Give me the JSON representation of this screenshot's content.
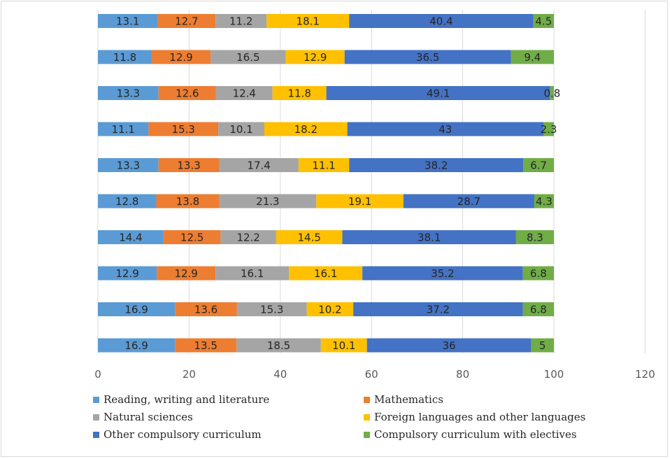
{
  "chart_data": {
    "type": "bar",
    "orientation": "horizontal",
    "stacked": true,
    "title": "",
    "xlabel": "",
    "ylabel": "",
    "xlim": [
      0,
      120
    ],
    "x_ticks": [
      0,
      20,
      40,
      60,
      80,
      100,
      120
    ],
    "grid": "vertical",
    "legend_position": "bottom",
    "categories": [
      "",
      "",
      "",
      "",
      "",
      "",
      "",
      "",
      "",
      ""
    ],
    "series": [
      {
        "name": "Reading, writing and literature",
        "color": "#5b9bd5",
        "values": [
          13.1,
          11.8,
          13.3,
          11.1,
          13.3,
          12.8,
          14.4,
          12.9,
          16.9,
          16.9
        ]
      },
      {
        "name": "Mathematics",
        "color": "#ed7d31",
        "values": [
          12.7,
          12.9,
          12.6,
          15.3,
          13.3,
          13.8,
          12.5,
          12.9,
          13.6,
          13.5
        ]
      },
      {
        "name": "Natural sciences",
        "color": "#a5a5a5",
        "values": [
          11.2,
          16.5,
          12.4,
          10.1,
          17.4,
          21.3,
          12.2,
          16.1,
          15.3,
          18.5
        ]
      },
      {
        "name": "Foreign languages and other languages",
        "color": "#ffc000",
        "values": [
          18.1,
          12.9,
          11.8,
          18.2,
          11.1,
          19.1,
          14.5,
          16.1,
          10.2,
          10.1
        ]
      },
      {
        "name": "Other compulsory curriculum",
        "color": "#4472c4",
        "values": [
          40.4,
          36.5,
          49.1,
          43,
          38.2,
          28.7,
          38.1,
          35.2,
          37.2,
          36
        ]
      },
      {
        "name": "Compulsory curriculum with electives",
        "color": "#70ad47",
        "values": [
          4.5,
          9.4,
          0.8,
          2.3,
          6.7,
          4.3,
          8.3,
          6.8,
          6.8,
          5
        ]
      }
    ]
  }
}
